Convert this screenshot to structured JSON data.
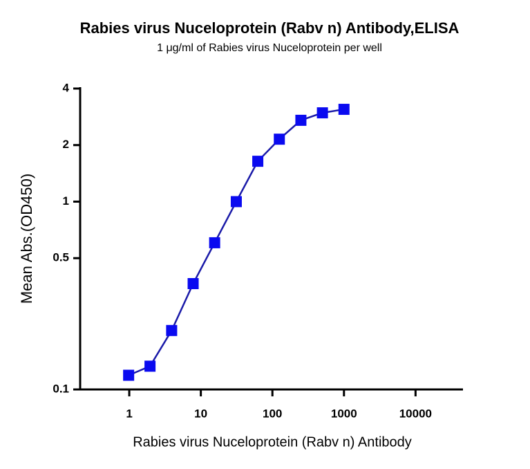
{
  "chart_data": {
    "type": "scatter-line",
    "title": "Rabies virus Nuceloprotein (Rabv n) Antibody,ELISA",
    "subtitle": "1 μg/ml of Rabies virus Nuceloprotein per well",
    "x_label": "Rabies virus Nuceloprotein (Rabv n) Antibody",
    "y_label": "Mean Abs.(OD450)",
    "x_scale": "log",
    "y_scale": "log",
    "x": [
      0.98,
      1.95,
      3.91,
      7.81,
      15.6,
      31.3,
      62.5,
      125,
      250,
      500,
      1000
    ],
    "series": [
      {
        "color": "#0a0af0",
        "line_color": "#1a1aa8",
        "values": [
          0.119,
          0.133,
          0.206,
          0.366,
          0.604,
          1.0,
          1.64,
          2.15,
          2.71,
          2.97,
          3.1
        ]
      }
    ],
    "xlim": [
      0.206,
      46000
    ],
    "xticks": [
      1,
      10,
      100,
      1000,
      10000
    ],
    "ylim": [
      0.1,
      4
    ],
    "yticks": [
      0.1,
      0.5,
      1,
      2,
      4
    ]
  }
}
